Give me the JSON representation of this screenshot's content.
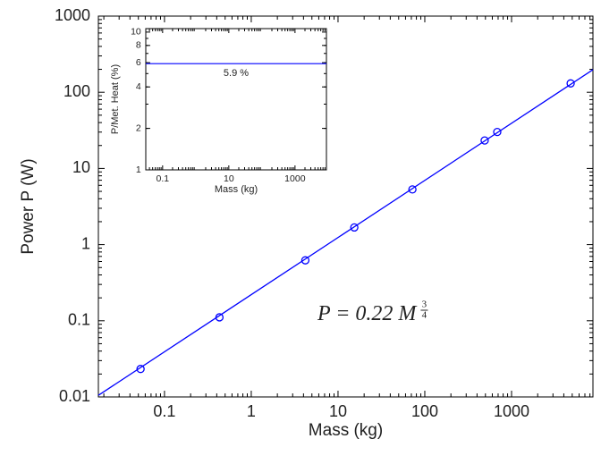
{
  "chart_data": [
    {
      "type": "scatter",
      "x_label": "Mass (kg)",
      "y_label": "Power P (W)",
      "xscale": "log",
      "yscale": "log",
      "color": "#0000ff",
      "points": {
        "x": [
          0.053,
          0.43,
          4.2,
          15.4,
          72,
          490,
          684,
          4800
        ],
        "values": [
          0.0233,
          0.111,
          0.622,
          1.68,
          5.3,
          23.3,
          30.1,
          130.7
        ]
      },
      "fit": {
        "x": [
          0.0173,
          8670
        ],
        "values": [
          0.0105,
          198
        ]
      },
      "formula": "P = 0.22 M",
      "formula_exponent_numerator": "3",
      "formula_exponent_denominator": "4",
      "xlim": [
        0.0173,
        8670
      ],
      "ylim": [
        0.01,
        1000
      ],
      "xticks": [
        0.1,
        1,
        10,
        100,
        1000
      ],
      "yticks": [
        0.01,
        0.1,
        1,
        10,
        100,
        1000
      ]
    },
    {
      "type": "hline",
      "x_label": "Mass (kg)",
      "y_label": "P/Met. Heat (%)",
      "xscale": "log",
      "yscale": "log",
      "color": "#0000ff",
      "value": 5.9,
      "value_label": "5.9 %",
      "xlim": [
        0.031,
        8900
      ],
      "ylim": [
        1,
        10.6
      ],
      "xticks": [
        0.1,
        10,
        1000
      ],
      "yticks": [
        1,
        2,
        4,
        6,
        8,
        10
      ]
    }
  ]
}
